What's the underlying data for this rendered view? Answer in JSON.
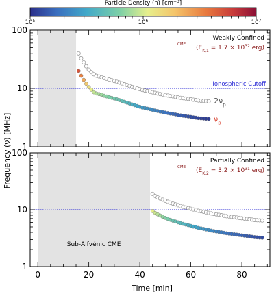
{
  "colorbar": {
    "title": "Particle Density (n) [cm",
    "title_sup": "−3",
    "title_end": "]",
    "tick_labels": [
      "10^5",
      "10^6",
      "10^7"
    ],
    "log_range": [
      5,
      7
    ],
    "colormap": [
      "#2b2f8a",
      "#3a6fbf",
      "#41a9c9",
      "#7fd1a6",
      "#e7ef8c",
      "#f4c46a",
      "#e8793e",
      "#c73a3a",
      "#8a1036"
    ]
  },
  "shared": {
    "xlabel": "Time [min]",
    "ylabel": "Frequency (ν) [MHz]",
    "xlim": [
      -3,
      91
    ],
    "xticks": [
      0,
      20,
      40,
      60,
      80
    ]
  },
  "chart_data": [
    {
      "type": "scatter",
      "panel": "top",
      "title": "Weakly Confined",
      "energy_label": "= 1.7 × 10",
      "energy_exp": "32",
      "energy_unit": "erg",
      "energy_sub": "K,1",
      "ylim": [
        1,
        100
      ],
      "yscale": "log",
      "yticks": [
        1,
        10,
        100
      ],
      "ytick_labels": [
        "1",
        "10",
        "100"
      ],
      "shaded_region": {
        "x": [
          0,
          15
        ],
        "label": ""
      },
      "cutoff": {
        "value": 10,
        "label": "Ionospheric Cutoff"
      },
      "series": [
        {
          "name": "2νp",
          "style": "open",
          "x": [
            16,
            17,
            18,
            19,
            20,
            21,
            22,
            23,
            24,
            25,
            26,
            27,
            28,
            29,
            30,
            31,
            32,
            33,
            34,
            35,
            36,
            37,
            38,
            39,
            40,
            41,
            42,
            43,
            44,
            45,
            46,
            47,
            48,
            49,
            50,
            51,
            52,
            53,
            54,
            55,
            56,
            57,
            58,
            59,
            60,
            61,
            62,
            63,
            64,
            65,
            66,
            67
          ],
          "y": [
            40,
            33,
            28,
            24,
            21,
            19,
            17.5,
            16.5,
            16,
            15.5,
            15,
            14.6,
            14.2,
            13.8,
            13.4,
            13,
            12.6,
            12.2,
            11.8,
            11.4,
            11,
            10.6,
            10.3,
            10,
            9.7,
            9.4,
            9.2,
            9,
            8.8,
            8.6,
            8.4,
            8.2,
            8.0,
            7.85,
            7.7,
            7.55,
            7.4,
            7.3,
            7.15,
            7.0,
            6.9,
            6.8,
            6.7,
            6.6,
            6.5,
            6.4,
            6.3,
            6.2,
            6.15,
            6.1,
            6.05,
            6.0
          ]
        },
        {
          "name": "νp",
          "style": "filled",
          "x": [
            16,
            17,
            18,
            19,
            20,
            21,
            22,
            23,
            24,
            25,
            26,
            27,
            28,
            29,
            30,
            31,
            32,
            33,
            34,
            35,
            36,
            37,
            38,
            39,
            40,
            41,
            42,
            43,
            44,
            45,
            46,
            47,
            48,
            49,
            50,
            51,
            52,
            53,
            54,
            55,
            56,
            57,
            58,
            59,
            60,
            61,
            62,
            63,
            64,
            65,
            66,
            67
          ],
          "y": [
            20,
            16.5,
            14,
            12,
            10.5,
            9.5,
            8.6,
            8.2,
            8.0,
            7.8,
            7.5,
            7.3,
            7.1,
            6.9,
            6.7,
            6.5,
            6.3,
            6.1,
            5.9,
            5.7,
            5.5,
            5.3,
            5.15,
            5.0,
            4.85,
            4.7,
            4.6,
            4.5,
            4.4,
            4.3,
            4.2,
            4.1,
            4.0,
            3.92,
            3.85,
            3.78,
            3.7,
            3.65,
            3.58,
            3.5,
            3.45,
            3.4,
            3.35,
            3.3,
            3.25,
            3.2,
            3.15,
            3.1,
            3.07,
            3.04,
            3.02,
            3.0
          ]
        }
      ]
    },
    {
      "type": "scatter",
      "panel": "bottom",
      "title": "Partially Confined",
      "energy_label": "= 3.2 × 10",
      "energy_exp": "31",
      "energy_unit": "erg",
      "energy_sub": "K,2",
      "ylim": [
        1,
        100
      ],
      "yscale": "log",
      "yticks": [
        1,
        10,
        100
      ],
      "ytick_labels": [
        "1",
        "10",
        "100"
      ],
      "shaded_region": {
        "x": [
          0,
          44
        ],
        "label": "Sub-Alfvénic CME"
      },
      "cutoff": {
        "value": 10,
        "label": ""
      },
      "series": [
        {
          "name": "2νp",
          "style": "open",
          "x": [
            45,
            46,
            47,
            48,
            49,
            50,
            51,
            52,
            53,
            54,
            55,
            56,
            57,
            58,
            59,
            60,
            61,
            62,
            63,
            64,
            65,
            66,
            67,
            68,
            69,
            70,
            71,
            72,
            73,
            74,
            75,
            76,
            77,
            78,
            79,
            80,
            81,
            82,
            83,
            84,
            85,
            86,
            87,
            88
          ],
          "y": [
            19,
            17.5,
            16.5,
            15.7,
            15,
            14.4,
            13.8,
            13.3,
            12.8,
            12.4,
            12,
            11.6,
            11.3,
            11,
            10.7,
            10.4,
            10.1,
            9.9,
            9.6,
            9.4,
            9.2,
            9.0,
            8.8,
            8.6,
            8.45,
            8.3,
            8.15,
            8.0,
            7.85,
            7.7,
            7.6,
            7.5,
            7.4,
            7.3,
            7.2,
            7.1,
            7.0,
            6.9,
            6.8,
            6.7,
            6.6,
            6.55,
            6.5,
            6.45
          ]
        },
        {
          "name": "νp",
          "style": "filled",
          "x": [
            45,
            46,
            47,
            48,
            49,
            50,
            51,
            52,
            53,
            54,
            55,
            56,
            57,
            58,
            59,
            60,
            61,
            62,
            63,
            64,
            65,
            66,
            67,
            68,
            69,
            70,
            71,
            72,
            73,
            74,
            75,
            76,
            77,
            78,
            79,
            80,
            81,
            82,
            83,
            84,
            85,
            86,
            87,
            88
          ],
          "y": [
            9.5,
            8.8,
            8.3,
            7.9,
            7.5,
            7.2,
            6.9,
            6.65,
            6.4,
            6.2,
            6.0,
            5.8,
            5.65,
            5.5,
            5.35,
            5.2,
            5.05,
            4.95,
            4.8,
            4.7,
            4.6,
            4.5,
            4.4,
            4.3,
            4.22,
            4.15,
            4.08,
            4.0,
            3.93,
            3.86,
            3.8,
            3.75,
            3.7,
            3.65,
            3.6,
            3.55,
            3.5,
            3.45,
            3.4,
            3.35,
            3.3,
            3.27,
            3.24,
            3.22
          ]
        }
      ]
    }
  ]
}
